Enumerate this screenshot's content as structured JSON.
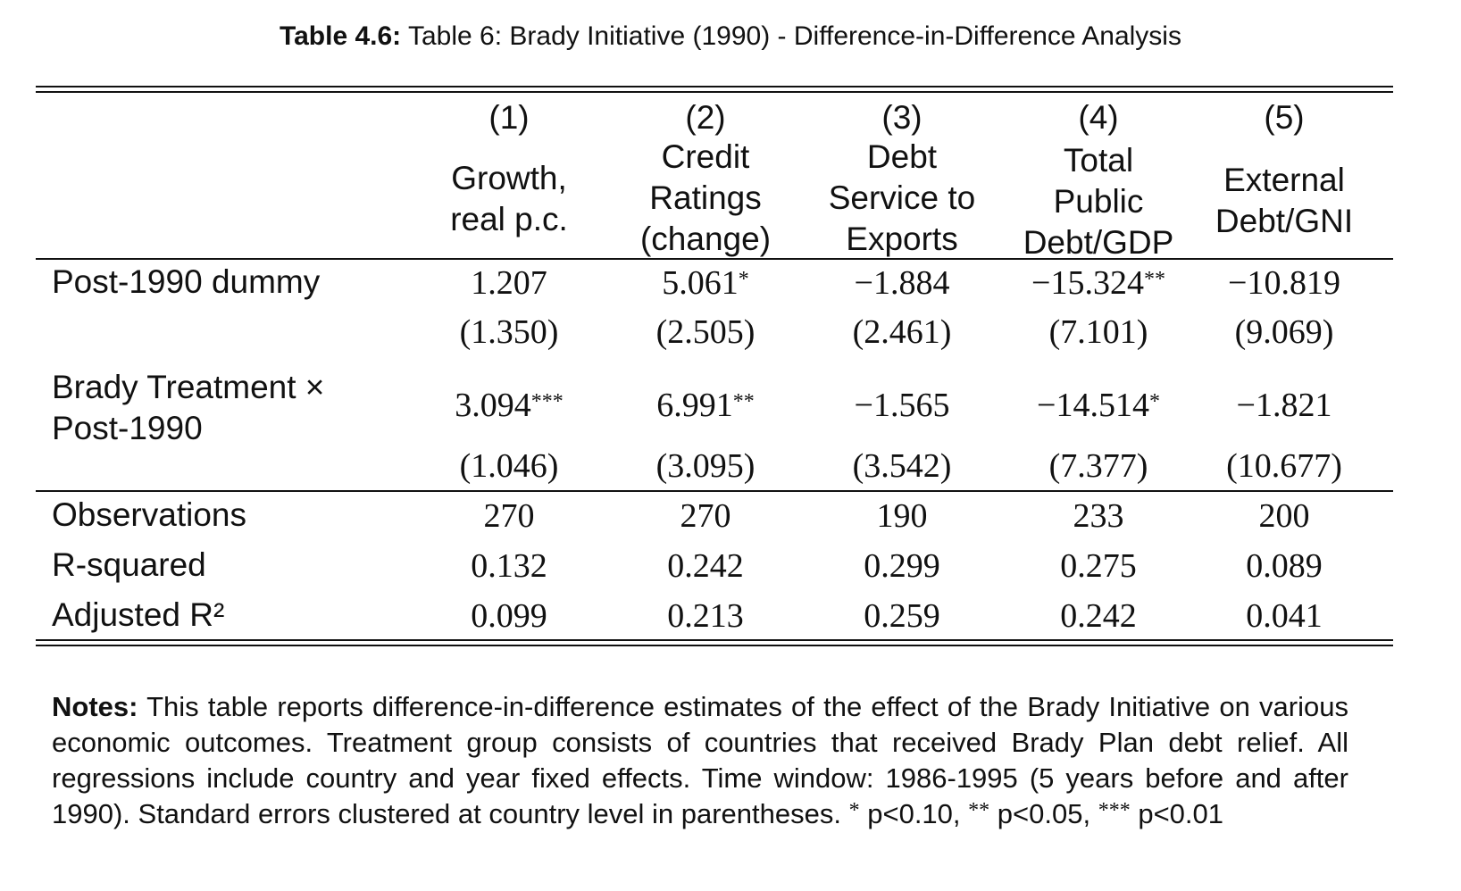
{
  "caption": {
    "label": "Table 4.6:",
    "title": "Table 6: Brady Initiative (1990) - Difference-in-Difference Analysis"
  },
  "columns": [
    {
      "num": "(1)",
      "title_lines": [
        "Growth,",
        "real p.c."
      ]
    },
    {
      "num": "(2)",
      "title_lines": [
        "Credit",
        "Ratings",
        "(change)"
      ]
    },
    {
      "num": "(3)",
      "title_lines": [
        "Debt",
        "Service to",
        "Exports"
      ]
    },
    {
      "num": "(4)",
      "title_lines": [
        "Total",
        "Public",
        "Debt/GDP"
      ]
    },
    {
      "num": "(5)",
      "title_lines": [
        "External",
        "Debt/GNI"
      ]
    }
  ],
  "rows": {
    "post_dummy": {
      "label": "Post-1990 dummy",
      "coef": [
        "1.207",
        "5.061",
        "−1.884",
        "−15.324",
        "−10.819"
      ],
      "stars": [
        "",
        "*",
        "",
        "**",
        ""
      ],
      "se": [
        "(1.350)",
        "(2.505)",
        "(2.461)",
        "(7.101)",
        "(9.069)"
      ]
    },
    "brady": {
      "label_line1": "Brady Treatment ×",
      "label_line2": "Post-1990",
      "coef": [
        "3.094",
        "6.991",
        "−1.565",
        "−14.514",
        "−1.821"
      ],
      "stars": [
        "***",
        "**",
        "",
        "*",
        ""
      ],
      "se": [
        "(1.046)",
        "(3.095)",
        "(3.542)",
        "(7.377)",
        "(10.677)"
      ]
    }
  },
  "stats": [
    {
      "label": "Observations",
      "values": [
        "270",
        "270",
        "190",
        "233",
        "200"
      ]
    },
    {
      "label": "R-squared",
      "values": [
        "0.132",
        "0.242",
        "0.299",
        "0.275",
        "0.089"
      ]
    },
    {
      "label": "Adjusted R²",
      "values": [
        "0.099",
        "0.213",
        "0.259",
        "0.242",
        "0.041"
      ]
    }
  ],
  "notes": {
    "label": "Notes:",
    "text": "This table reports difference-in-difference estimates of the effect of the Brady Initiative on various economic outcomes. Treatment group consists of countries that received Brady Plan debt relief. All regressions include country and year fixed effects. Time window: 1986-1995 (5 years before and after 1990). Standard errors clustered at country level in parentheses.",
    "sig1_mark": "*",
    "sig1_text": "p<0.10,",
    "sig2_mark": "**",
    "sig2_text": "p<0.05,",
    "sig3_mark": "***",
    "sig3_text": "p<0.01"
  }
}
